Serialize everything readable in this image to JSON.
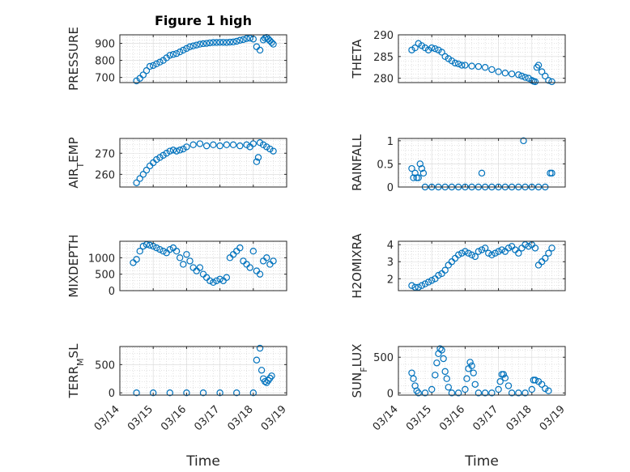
{
  "figure": {
    "title": "Figure 1 high"
  },
  "colors": {
    "marker": "#0072BD",
    "axis": "#262626"
  },
  "chart_data": [
    {
      "type": "scatter",
      "id": "pressure",
      "ylabel": "PRESSURE",
      "ylim": [
        670,
        950
      ],
      "yticks": [
        700,
        800,
        900
      ],
      "xlim": [
        0,
        5
      ],
      "grid": true,
      "x": [
        0.5,
        0.6,
        0.7,
        0.8,
        0.9,
        1.0,
        1.1,
        1.2,
        1.3,
        1.4,
        1.5,
        1.6,
        1.7,
        1.8,
        1.9,
        2.0,
        2.1,
        2.2,
        2.3,
        2.4,
        2.5,
        2.6,
        2.7,
        2.8,
        2.9,
        3.0,
        3.1,
        3.2,
        3.3,
        3.4,
        3.5,
        3.6,
        3.7,
        3.8,
        3.9,
        4.0,
        4.1,
        4.2,
        4.3,
        4.35,
        4.4,
        4.45,
        4.5,
        4.55,
        4.6
      ],
      "y": [
        680,
        695,
        715,
        740,
        765,
        770,
        780,
        790,
        800,
        815,
        830,
        835,
        840,
        850,
        860,
        870,
        880,
        885,
        890,
        895,
        898,
        900,
        903,
        905,
        905,
        906,
        906,
        905,
        907,
        908,
        912,
        918,
        922,
        928,
        930,
        925,
        880,
        860,
        920,
        930,
        935,
        925,
        915,
        905,
        895
      ]
    },
    {
      "type": "scatter",
      "id": "theta",
      "ylabel": "THETA",
      "ylim": [
        279,
        290
      ],
      "yticks": [
        280,
        285,
        290
      ],
      "xlim": [
        0,
        5
      ],
      "grid": true,
      "x": [
        0.4,
        0.5,
        0.6,
        0.7,
        0.8,
        0.9,
        1.0,
        1.1,
        1.2,
        1.3,
        1.4,
        1.5,
        1.6,
        1.7,
        1.8,
        1.9,
        2.0,
        2.2,
        2.4,
        2.6,
        2.8,
        3.0,
        3.2,
        3.4,
        3.6,
        3.7,
        3.8,
        3.9,
        4.0,
        4.05,
        4.1,
        4.15,
        4.2,
        4.3,
        4.4,
        4.5,
        4.6
      ],
      "y": [
        286.5,
        287.0,
        288.0,
        287.5,
        287.0,
        286.5,
        287.0,
        286.8,
        286.5,
        286.0,
        285.0,
        284.5,
        284.0,
        283.5,
        283.3,
        283.0,
        283.0,
        282.8,
        282.7,
        282.5,
        282.0,
        281.5,
        281.2,
        281.0,
        280.8,
        280.5,
        280.2,
        280.0,
        279.5,
        279.3,
        279.2,
        282.5,
        283.0,
        281.5,
        280.5,
        279.5,
        279.2
      ]
    },
    {
      "type": "scatter",
      "id": "air_temp",
      "ylabel": "AIR",
      "ylabel_sub": "T",
      "ylabel_rest": "EMP",
      "ylim": [
        254,
        277
      ],
      "yticks": [
        260,
        270
      ],
      "xlim": [
        0,
        5
      ],
      "grid": true,
      "x": [
        0.5,
        0.6,
        0.7,
        0.8,
        0.9,
        1.0,
        1.1,
        1.2,
        1.3,
        1.4,
        1.5,
        1.6,
        1.7,
        1.8,
        1.9,
        2.0,
        2.2,
        2.4,
        2.6,
        2.8,
        3.0,
        3.2,
        3.4,
        3.6,
        3.8,
        3.9,
        4.0,
        4.1,
        4.15,
        4.2,
        4.3,
        4.4,
        4.5,
        4.6
      ],
      "y": [
        256,
        258,
        260,
        262,
        264,
        265.5,
        267,
        268,
        269,
        270,
        271,
        271.5,
        271,
        271.5,
        272,
        273,
        274,
        274.5,
        273.5,
        274,
        273.5,
        274,
        274,
        273.5,
        274,
        273,
        274.5,
        266,
        268,
        275,
        274,
        273,
        272,
        271
      ]
    },
    {
      "type": "scatter",
      "id": "rainfall",
      "ylabel": "RAINFALL",
      "ylim": [
        0,
        1.05
      ],
      "yticks": [
        0,
        0.5,
        1
      ],
      "xlim": [
        0,
        5
      ],
      "grid": true,
      "x": [
        0.4,
        0.45,
        0.5,
        0.55,
        0.6,
        0.65,
        0.7,
        0.75,
        0.8,
        1.0,
        1.2,
        1.4,
        1.6,
        1.8,
        2.0,
        2.2,
        2.4,
        2.6,
        2.8,
        3.0,
        3.2,
        3.4,
        3.6,
        3.8,
        4.0,
        4.2,
        4.4,
        2.5,
        3.75,
        4.55,
        4.6
      ],
      "y": [
        0.4,
        0.2,
        0.3,
        0.2,
        0.2,
        0.5,
        0.4,
        0.3,
        0,
        0,
        0,
        0,
        0,
        0,
        0,
        0,
        0,
        0,
        0,
        0,
        0,
        0,
        0,
        0,
        0,
        0,
        0,
        0.3,
        1.0,
        0.3,
        0.3
      ]
    },
    {
      "type": "scatter",
      "id": "mixdepth",
      "ylabel": "MIXDEPTH",
      "ylim": [
        0,
        1500
      ],
      "yticks": [
        0,
        500,
        1000
      ],
      "xlim": [
        0,
        5
      ],
      "grid": true,
      "x": [
        0.4,
        0.5,
        0.6,
        0.7,
        0.8,
        0.9,
        1.0,
        1.1,
        1.2,
        1.3,
        1.4,
        1.5,
        1.6,
        1.7,
        1.8,
        1.9,
        2.0,
        2.1,
        2.2,
        2.3,
        2.4,
        2.5,
        2.6,
        2.7,
        2.8,
        2.9,
        3.0,
        3.1,
        3.2,
        3.3,
        3.4,
        3.5,
        3.6,
        3.7,
        3.8,
        3.9,
        4.0,
        4.1,
        4.2,
        4.3,
        4.4,
        4.5,
        4.6
      ],
      "y": [
        850,
        950,
        1200,
        1350,
        1400,
        1380,
        1350,
        1300,
        1250,
        1200,
        1150,
        1250,
        1300,
        1200,
        1000,
        800,
        1100,
        900,
        700,
        600,
        700,
        500,
        400,
        300,
        250,
        300,
        350,
        300,
        400,
        1000,
        1100,
        1200,
        1300,
        900,
        800,
        700,
        1200,
        600,
        500,
        900,
        1000,
        800,
        900
      ]
    },
    {
      "type": "scatter",
      "id": "h2omixra",
      "ylabel": "H2OMIXRA",
      "ylim": [
        1.3,
        4.2
      ],
      "yticks": [
        2,
        3,
        4
      ],
      "xlim": [
        0,
        5
      ],
      "grid": true,
      "x": [
        0.4,
        0.5,
        0.6,
        0.7,
        0.8,
        0.9,
        1.0,
        1.1,
        1.2,
        1.3,
        1.4,
        1.5,
        1.6,
        1.7,
        1.8,
        1.9,
        2.0,
        2.1,
        2.2,
        2.3,
        2.4,
        2.5,
        2.6,
        2.7,
        2.8,
        2.9,
        3.0,
        3.1,
        3.2,
        3.3,
        3.4,
        3.5,
        3.6,
        3.7,
        3.8,
        3.9,
        4.0,
        4.1,
        4.2,
        4.3,
        4.4,
        4.5,
        4.6
      ],
      "y": [
        1.6,
        1.5,
        1.5,
        1.6,
        1.7,
        1.8,
        1.9,
        2.0,
        2.2,
        2.3,
        2.5,
        2.8,
        3.0,
        3.2,
        3.4,
        3.5,
        3.6,
        3.5,
        3.4,
        3.3,
        3.6,
        3.7,
        3.8,
        3.5,
        3.4,
        3.5,
        3.6,
        3.7,
        3.6,
        3.8,
        3.9,
        3.7,
        3.5,
        3.8,
        4.0,
        3.9,
        4.0,
        3.8,
        2.8,
        3.0,
        3.2,
        3.5,
        3.8
      ]
    },
    {
      "type": "scatter",
      "id": "terr_msl",
      "ylabel": "TERR",
      "ylabel_sub": "M",
      "ylabel_rest": "SL",
      "ylim": [
        -40,
        820
      ],
      "yticks": [
        0,
        500
      ],
      "xlim": [
        0,
        5
      ],
      "grid": true,
      "x": [
        0.5,
        1.0,
        1.5,
        2.0,
        2.5,
        3.0,
        3.5,
        4.0,
        4.1,
        4.2,
        4.25,
        4.3,
        4.35,
        4.4,
        4.45,
        4.5,
        4.55
      ],
      "y": [
        0,
        0,
        0,
        0,
        0,
        0,
        0,
        0,
        580,
        790,
        400,
        250,
        200,
        180,
        220,
        260,
        300
      ]
    },
    {
      "type": "scatter",
      "id": "sun_flux",
      "ylabel": "SUN",
      "ylabel_sub": "F",
      "ylabel_rest": "LUX",
      "ylim": [
        -30,
        650
      ],
      "yticks": [
        0,
        500
      ],
      "xlim": [
        0,
        5
      ],
      "grid": true,
      "x": [
        0.4,
        0.45,
        0.5,
        0.55,
        0.6,
        0.8,
        1.0,
        1.1,
        1.15,
        1.2,
        1.25,
        1.3,
        1.35,
        1.4,
        1.45,
        1.5,
        1.6,
        1.8,
        2.0,
        2.05,
        2.1,
        2.15,
        2.2,
        2.25,
        2.3,
        2.4,
        2.6,
        2.8,
        3.0,
        3.05,
        3.1,
        3.15,
        3.2,
        3.3,
        3.4,
        3.6,
        3.8,
        4.0,
        4.05,
        4.1,
        4.2,
        4.3,
        4.4,
        4.5
      ],
      "y": [
        280,
        200,
        100,
        30,
        0,
        0,
        50,
        250,
        420,
        550,
        620,
        600,
        480,
        300,
        200,
        80,
        0,
        0,
        50,
        200,
        340,
        430,
        380,
        280,
        120,
        0,
        0,
        0,
        50,
        160,
        260,
        260,
        210,
        100,
        0,
        0,
        0,
        50,
        180,
        180,
        160,
        120,
        60,
        30
      ]
    }
  ],
  "x_axis": {
    "ticks": [
      {
        "pos": 0,
        "label": "03/14"
      },
      {
        "pos": 1,
        "label": "03/15"
      },
      {
        "pos": 2,
        "label": "03/16"
      },
      {
        "pos": 3,
        "label": "03/17"
      },
      {
        "pos": 4,
        "label": "03/18"
      },
      {
        "pos": 5,
        "label": "03/19"
      }
    ],
    "label": "Time"
  }
}
